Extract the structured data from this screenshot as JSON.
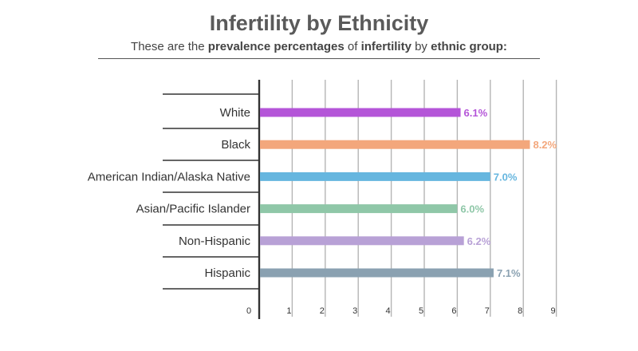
{
  "chart_data": {
    "type": "bar",
    "orientation": "horizontal",
    "title": "Infertility by Ethnicity",
    "subtitle": {
      "parts": [
        {
          "text": "These are the ",
          "bold": false
        },
        {
          "text": "prevalence percentages",
          "bold": true
        },
        {
          "text": " of ",
          "bold": false
        },
        {
          "text": "infertility",
          "bold": true
        },
        {
          "text": " by ",
          "bold": false
        },
        {
          "text": "ethnic group:",
          "bold": true
        }
      ]
    },
    "categories": [
      "White",
      "Black",
      "American Indian/Alaska Native",
      "Asian/Pacific Islander",
      "Non-Hispanic",
      "Hispanic"
    ],
    "values": [
      6.1,
      8.2,
      7.0,
      6.0,
      6.2,
      7.1
    ],
    "data_labels": [
      "6.1%",
      "8.2%",
      "7.0%",
      "6.0%",
      "6.2%",
      "7.1%"
    ],
    "colors": [
      "#b455d8",
      "#f3a77c",
      "#66b6df",
      "#8fc7a8",
      "#b8a1d6",
      "#8aa1b1"
    ],
    "xlim": [
      0,
      9
    ],
    "xticks": [
      "0",
      "1",
      "2",
      "3",
      "4",
      "5",
      "6",
      "7",
      "8",
      "9"
    ],
    "grid": true,
    "legend": "none"
  }
}
